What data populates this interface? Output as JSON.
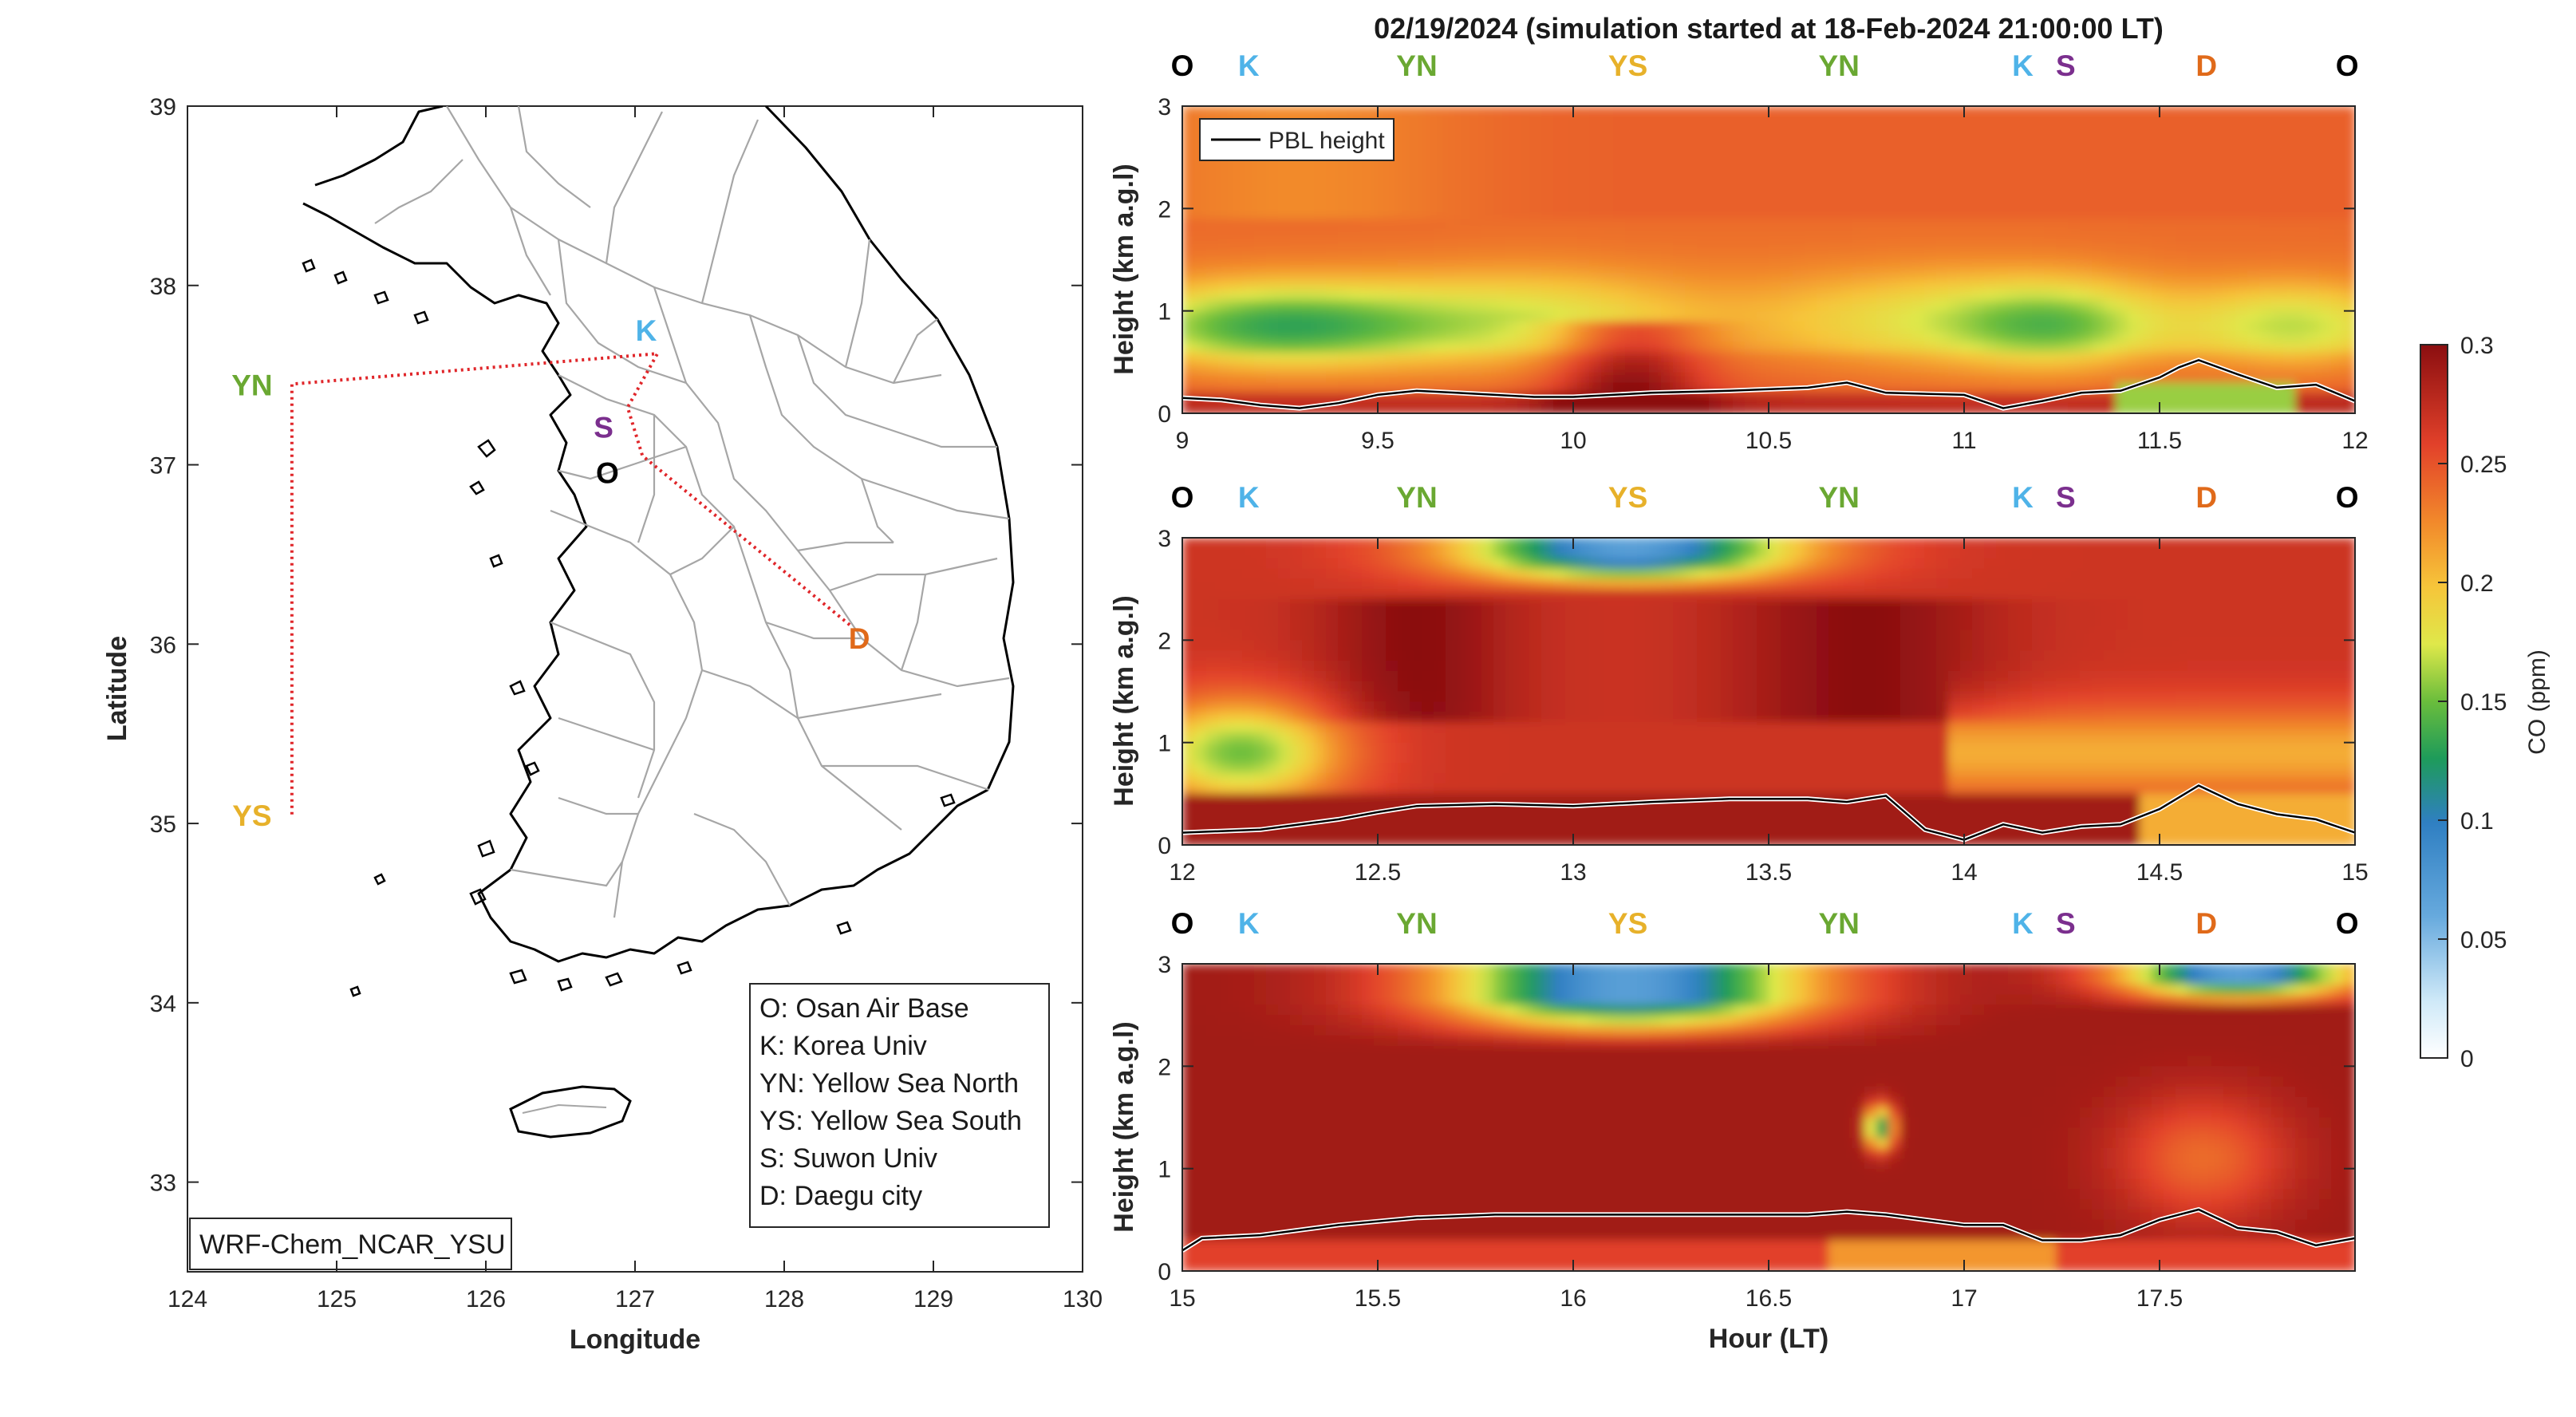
{
  "colors": {
    "O": "#000000",
    "K": "#4fb3e8",
    "YN": "#6aa832",
    "YS": "#e7b12a",
    "S": "#7b2f8e",
    "D": "#e06a1a",
    "track": "#e0262a",
    "pbl": "#000000",
    "coast": "#000000",
    "borders": "#a6a6a6"
  },
  "map_panel": {
    "model_label": "WRF-Chem_NCAR_YSU",
    "legend_entries": [
      "O: Osan Air Base",
      "K: Korea Univ",
      "YN: Yellow Sea North",
      "YS: Yellow Sea South",
      "S: Suwon Univ",
      "D: Daegu city"
    ],
    "sites": [
      {
        "code": "YN",
        "lon": 124.7,
        "lat": 37.45
      },
      {
        "code": "YS",
        "lon": 124.7,
        "lat": 35.05
      },
      {
        "code": "K",
        "lon": 127.15,
        "lat": 37.62
      },
      {
        "code": "S",
        "lon": 126.95,
        "lat": 37.32
      },
      {
        "code": "O",
        "lon": 127.05,
        "lat": 37.05
      },
      {
        "code": "D",
        "lon": 128.45,
        "lat": 36.1
      }
    ]
  },
  "chart_data": [
    {
      "type": "scatter",
      "title": "",
      "xlabel": "Longitude",
      "ylabel": "Latitude",
      "xlim": [
        124,
        130
      ],
      "ylim": [
        32.5,
        39
      ],
      "xticks": [
        "124",
        "125",
        "126",
        "127",
        "128",
        "129",
        "130"
      ],
      "yticks": [
        "33",
        "34",
        "35",
        "36",
        "37",
        "38",
        "39"
      ],
      "grid": false,
      "series": [
        {
          "x": [
            124.7,
            124.7,
            124.7,
            127.15,
            127.15,
            126.95,
            127.05,
            128.45
          ],
          "y": [
            35.05,
            37.45,
            37.45,
            37.62,
            37.62,
            37.32,
            37.05,
            36.1
          ]
        }
      ]
    },
    {
      "type": "heatmap",
      "title": "02/19/2024 (simulation started at 18-Feb-2024 21:00:00 LT)",
      "xlabel": "",
      "ylabel": "Height (km a.g.l)",
      "xlim": [
        9,
        12
      ],
      "ylim": [
        0,
        3
      ],
      "xticks": [
        "9",
        "9.5",
        "10",
        "10.5",
        "11",
        "11.5",
        "12"
      ],
      "yticks": [
        "0",
        "1",
        "2",
        "3"
      ],
      "colorbar_label": "CO (ppm)",
      "clim": [
        0,
        0.3
      ],
      "legend": [
        "PBL height"
      ],
      "legend_position": "top-left",
      "site_labels": [
        {
          "code": "O",
          "hour": 9.0
        },
        {
          "code": "K",
          "hour": 9.17
        },
        {
          "code": "YN",
          "hour": 9.6
        },
        {
          "code": "YS",
          "hour": 10.14
        },
        {
          "code": "YN",
          "hour": 10.68
        },
        {
          "code": "K",
          "hour": 11.15
        },
        {
          "code": "S",
          "hour": 11.26
        },
        {
          "code": "D",
          "hour": 11.62
        },
        {
          "code": "O",
          "hour": 11.98
        }
      ],
      "pbl_height": {
        "x": [
          9.0,
          9.1,
          9.2,
          9.3,
          9.4,
          9.5,
          9.6,
          9.7,
          9.8,
          9.9,
          10.0,
          10.2,
          10.4,
          10.6,
          10.7,
          10.8,
          11.0,
          11.1,
          11.2,
          11.3,
          11.4,
          11.5,
          11.55,
          11.6,
          11.7,
          11.8,
          11.9,
          12.0
        ],
        "y": [
          0.15,
          0.13,
          0.08,
          0.05,
          0.1,
          0.18,
          0.22,
          0.2,
          0.18,
          0.16,
          0.16,
          0.2,
          0.22,
          0.25,
          0.3,
          0.2,
          0.18,
          0.05,
          0.12,
          0.2,
          0.22,
          0.35,
          0.45,
          0.52,
          0.38,
          0.25,
          0.28,
          0.12
        ]
      }
    },
    {
      "type": "heatmap",
      "title": "",
      "xlabel": "",
      "ylabel": "Height (km a.g.l)",
      "xlim": [
        12,
        15
      ],
      "ylim": [
        0,
        3
      ],
      "xticks": [
        "12",
        "12.5",
        "13",
        "13.5",
        "14",
        "14.5",
        "15"
      ],
      "yticks": [
        "0",
        "1",
        "2",
        "3"
      ],
      "clim": [
        0,
        0.3
      ],
      "site_labels": [
        {
          "code": "O",
          "hour": 12.0
        },
        {
          "code": "K",
          "hour": 12.17
        },
        {
          "code": "YN",
          "hour": 12.6
        },
        {
          "code": "YS",
          "hour": 13.14
        },
        {
          "code": "YN",
          "hour": 13.68
        },
        {
          "code": "K",
          "hour": 14.15
        },
        {
          "code": "S",
          "hour": 14.26
        },
        {
          "code": "D",
          "hour": 14.62
        },
        {
          "code": "O",
          "hour": 14.98
        }
      ],
      "pbl_height": {
        "x": [
          12.0,
          12.2,
          12.4,
          12.5,
          12.6,
          12.8,
          13.0,
          13.2,
          13.4,
          13.6,
          13.7,
          13.8,
          13.9,
          14.0,
          14.1,
          14.2,
          14.3,
          14.4,
          14.5,
          14.6,
          14.7,
          14.8,
          14.9,
          15.0
        ],
        "y": [
          0.12,
          0.15,
          0.25,
          0.32,
          0.38,
          0.4,
          0.38,
          0.42,
          0.45,
          0.45,
          0.42,
          0.48,
          0.15,
          0.05,
          0.2,
          0.12,
          0.18,
          0.2,
          0.35,
          0.58,
          0.4,
          0.3,
          0.25,
          0.12
        ]
      }
    },
    {
      "type": "heatmap",
      "title": "",
      "xlabel": "Hour (LT)",
      "ylabel": "Height (km a.g.l)",
      "xlim": [
        15,
        18
      ],
      "ylim": [
        0,
        3
      ],
      "xticks": [
        "15",
        "15.5",
        "16",
        "16.5",
        "17",
        "17.5"
      ],
      "yticks": [
        "0",
        "1",
        "2",
        "3"
      ],
      "clim": [
        0,
        0.3
      ],
      "site_labels": [
        {
          "code": "O",
          "hour": 15.0
        },
        {
          "code": "K",
          "hour": 15.17
        },
        {
          "code": "YN",
          "hour": 15.6
        },
        {
          "code": "YS",
          "hour": 16.14
        },
        {
          "code": "YN",
          "hour": 16.68
        },
        {
          "code": "K",
          "hour": 17.15
        },
        {
          "code": "S",
          "hour": 17.26
        },
        {
          "code": "D",
          "hour": 17.62
        },
        {
          "code": "O",
          "hour": 17.98
        }
      ],
      "pbl_height": {
        "x": [
          15.0,
          15.05,
          15.2,
          15.4,
          15.6,
          15.8,
          16.0,
          16.2,
          16.4,
          16.6,
          16.7,
          16.8,
          17.0,
          17.1,
          17.2,
          17.3,
          17.4,
          17.5,
          17.6,
          17.7,
          17.8,
          17.9,
          18.0
        ],
        "y": [
          0.2,
          0.32,
          0.35,
          0.45,
          0.52,
          0.55,
          0.55,
          0.55,
          0.55,
          0.55,
          0.58,
          0.55,
          0.45,
          0.45,
          0.3,
          0.3,
          0.35,
          0.5,
          0.6,
          0.42,
          0.38,
          0.25,
          0.32
        ]
      }
    }
  ],
  "colorbar": {
    "label": "CO (ppm)",
    "ticks": [
      "0",
      "0.05",
      "0.1",
      "0.15",
      "0.2",
      "0.25",
      "0.3"
    ],
    "colormap": [
      "#ffffff",
      "#a9d9f5",
      "#3f87c6",
      "#1fa33c",
      "#f2ef46",
      "#f6a22d",
      "#e2412a",
      "#8b0e10"
    ]
  }
}
